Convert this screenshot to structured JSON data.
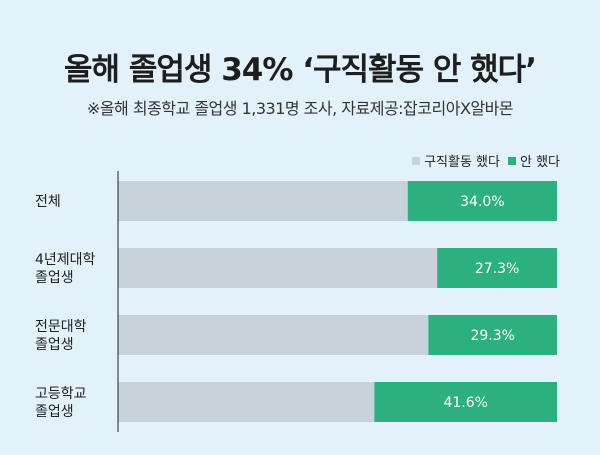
{
  "title": "올해 졸업생 34% ‘구직활동 안 했다’",
  "subtitle": "※올해 최종학교 졸업생 1,331명 조사, 자료제공:잡코리아X알바몬",
  "colors": {
    "did": "#c7d2da",
    "didnt": "#2bb07e",
    "background": "#e3f1fa"
  },
  "chart_data": {
    "type": "bar",
    "orientation": "horizontal-stacked-100",
    "categories": [
      [
        "전체"
      ],
      [
        "4년제대학",
        "졸업생"
      ],
      [
        "전문대학",
        "졸업생"
      ],
      [
        "고등학교",
        "졸업생"
      ]
    ],
    "series": [
      {
        "name": "구직활동 했다",
        "values": [
          66.0,
          72.7,
          70.7,
          58.4
        ]
      },
      {
        "name": "안 했다",
        "values": [
          34.0,
          27.3,
          29.3,
          41.6
        ]
      }
    ],
    "data_labels": [
      "34.0%",
      "27.3%",
      "29.3%",
      "41.6%"
    ],
    "xlim": [
      0,
      100
    ],
    "legend_position": "top-right"
  }
}
